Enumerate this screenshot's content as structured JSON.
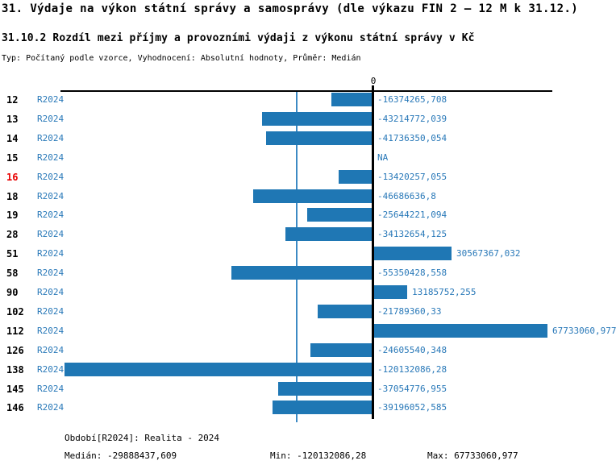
{
  "title": "31. Výdaje na výkon státní správy a samosprávy (dle výkazu FIN 2 – 12 M k 31.12.)",
  "subtitle": "31.10.2 Rozdíl mezi příjmy a provozními výdaji z výkonu státní správy v Kč",
  "meta_line": "Typ: Počítaný podle vzorce, Vyhodnocení: Absolutní hodnoty, Průměr: Medián",
  "chart_data": {
    "type": "bar",
    "orientation": "horizontal",
    "series_label": "R2024",
    "categories": [
      "12",
      "13",
      "14",
      "15",
      "16",
      "18",
      "19",
      "28",
      "51",
      "58",
      "90",
      "102",
      "112",
      "126",
      "138",
      "145",
      "146"
    ],
    "values": [
      -16374265.708,
      -43214772.039,
      -41736350.054,
      null,
      -13420257.055,
      -46686636.8,
      -25644221.094,
      -34132654.125,
      30567367.032,
      -55350428.558,
      13185752.255,
      -21789360.33,
      67733060.977,
      -24605540.348,
      -120132086.28,
      -37054776.955,
      -39196052.585
    ],
    "value_labels": [
      "-16374265,708",
      "-43214772,039",
      "-41736350,054",
      "NA",
      "-13420257,055",
      "-46686636,8",
      "-25644221,094",
      "-34132654,125",
      "30567367,032",
      "-55350428,558",
      "13185752,255",
      "-21789360,33",
      "67733060,977",
      "-24605540,348",
      "-120132086,28",
      "-37054776,955",
      "-39196052,585"
    ],
    "highlighted_category": "16",
    "zero_label": "0",
    "xlim": [
      -120132086.28,
      67733060.977
    ],
    "median": -29888437.609,
    "min": -120132086.28,
    "max": 67733060.977,
    "grid": "off",
    "legend": "none",
    "bar_color": "#1f77b4",
    "text_blue": "#2878b8",
    "median_line_color": "#3d8ac4",
    "highlight_color": "#e80000",
    "axis_color": "#000000"
  },
  "footer": {
    "period_line": "Období[R2024]: Realita - 2024",
    "median_label": "Medián: -29888437,609",
    "min_label": "Min: -120132086,28",
    "max_label": "Max: 67733060,977"
  }
}
